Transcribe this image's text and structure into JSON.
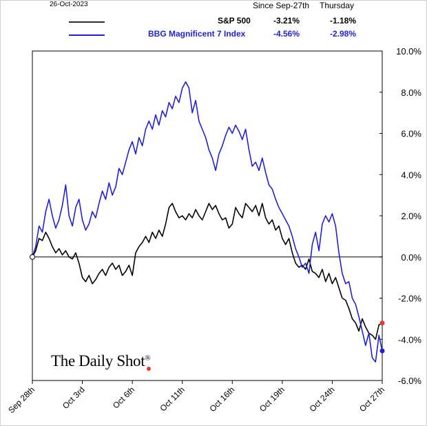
{
  "header": {
    "date": "26-Oct-2023",
    "col1": "Since Sep-27th",
    "col2": "Thursday"
  },
  "legend": [
    {
      "name": "S&P 500",
      "since": "-3.21%",
      "day": "-1.18%"
    },
    {
      "name": "BBG Magnificent 7 Index",
      "since": "-4.56%",
      "day": "-2.98%"
    }
  ],
  "brand": {
    "text": "The Daily Shot",
    "mark": "®"
  },
  "chart_data": {
    "type": "line",
    "title": "",
    "xlabel": "",
    "ylabel": "",
    "ylim": [
      -6,
      10
    ],
    "yticks": [
      -6,
      -4,
      -2,
      0,
      2,
      4,
      6,
      8,
      10
    ],
    "ytick_labels": [
      "-6.0%",
      "-4.0%",
      "-2.0%",
      "0.0%",
      "2.0%",
      "4.0%",
      "6.0%",
      "8.0%",
      "10.0%"
    ],
    "xlim": [
      0,
      21
    ],
    "xticks": [
      0,
      3,
      6,
      9,
      12,
      15,
      18,
      21
    ],
    "xtick_labels": [
      "Sep 28th",
      "Oct 3rd",
      "Oct 6th",
      "Oct 11th",
      "Oct 16th",
      "Oct 19th",
      "Oct 24th",
      "Oct 27th"
    ],
    "colors": {
      "sp500": "#000000",
      "mag7": "#1f1fd6",
      "sp500_end": "#e53935",
      "mag7_end": "#1f1fd6"
    },
    "series": [
      {
        "name": "S&P 500",
        "color": "#000000",
        "points": [
          [
            0,
            0
          ],
          [
            0.2,
            0.3
          ],
          [
            0.4,
            0.9
          ],
          [
            0.6,
            0.8
          ],
          [
            0.8,
            1.2
          ],
          [
            1.0,
            0.9
          ],
          [
            1.2,
            0.5
          ],
          [
            1.4,
            0.2
          ],
          [
            1.6,
            0.4
          ],
          [
            1.8,
            0.1
          ],
          [
            2.0,
            0.3
          ],
          [
            2.2,
            0.0
          ],
          [
            2.4,
            -0.1
          ],
          [
            2.6,
            0.2
          ],
          [
            2.8,
            -0.3
          ],
          [
            3.0,
            -1.0
          ],
          [
            3.2,
            -1.2
          ],
          [
            3.4,
            -0.9
          ],
          [
            3.6,
            -1.3
          ],
          [
            3.8,
            -1.1
          ],
          [
            4.0,
            -0.8
          ],
          [
            4.2,
            -0.6
          ],
          [
            4.4,
            -0.9
          ],
          [
            4.6,
            -0.5
          ],
          [
            4.8,
            -0.3
          ],
          [
            5.0,
            -0.6
          ],
          [
            5.2,
            -0.4
          ],
          [
            5.4,
            -0.9
          ],
          [
            5.6,
            -0.7
          ],
          [
            5.8,
            -0.4
          ],
          [
            6.0,
            -0.9
          ],
          [
            6.2,
            0.2
          ],
          [
            6.4,
            0.5
          ],
          [
            6.6,
            0.7
          ],
          [
            6.8,
            1.0
          ],
          [
            7.0,
            0.7
          ],
          [
            7.2,
            1.2
          ],
          [
            7.4,
            0.9
          ],
          [
            7.6,
            1.3
          ],
          [
            7.8,
            1.0
          ],
          [
            8.0,
            1.6
          ],
          [
            8.2,
            2.4
          ],
          [
            8.4,
            2.6
          ],
          [
            8.6,
            2.2
          ],
          [
            8.8,
            1.9
          ],
          [
            9.0,
            2.0
          ],
          [
            9.2,
            1.8
          ],
          [
            9.4,
            2.1
          ],
          [
            9.6,
            1.9
          ],
          [
            9.8,
            2.3
          ],
          [
            10.0,
            2.0
          ],
          [
            10.2,
            1.8
          ],
          [
            10.4,
            2.2
          ],
          [
            10.6,
            2.6
          ],
          [
            10.8,
            2.3
          ],
          [
            11.0,
            2.5
          ],
          [
            11.2,
            2.1
          ],
          [
            11.4,
            1.8
          ],
          [
            11.6,
            1.9
          ],
          [
            11.8,
            1.4
          ],
          [
            12.0,
            1.6
          ],
          [
            12.2,
            2.4
          ],
          [
            12.4,
            2.1
          ],
          [
            12.6,
            1.9
          ],
          [
            12.8,
            2.6
          ],
          [
            13.0,
            2.4
          ],
          [
            13.2,
            2.2
          ],
          [
            13.4,
            2.5
          ],
          [
            13.6,
            2.0
          ],
          [
            13.8,
            2.6
          ],
          [
            14.0,
            1.9
          ],
          [
            14.2,
            1.6
          ],
          [
            14.4,
            1.8
          ],
          [
            14.6,
            1.3
          ],
          [
            14.8,
            1.5
          ],
          [
            15.0,
            0.9
          ],
          [
            15.2,
            0.6
          ],
          [
            15.4,
            0.9
          ],
          [
            15.6,
            0.2
          ],
          [
            15.8,
            -0.3
          ],
          [
            16.0,
            -0.5
          ],
          [
            16.2,
            -0.4
          ],
          [
            16.4,
            -0.6
          ],
          [
            16.6,
            -0.1
          ],
          [
            16.8,
            -0.7
          ],
          [
            17.0,
            -0.8
          ],
          [
            17.2,
            -1.0
          ],
          [
            17.4,
            -0.6
          ],
          [
            17.6,
            -1.2
          ],
          [
            17.8,
            -0.8
          ],
          [
            18.0,
            -1.3
          ],
          [
            18.2,
            -1.0
          ],
          [
            18.4,
            -1.5
          ],
          [
            18.6,
            -2.0
          ],
          [
            18.8,
            -2.1
          ],
          [
            19.0,
            -2.5
          ],
          [
            19.2,
            -3.0
          ],
          [
            19.4,
            -3.2
          ],
          [
            19.6,
            -3.6
          ],
          [
            19.8,
            -3.0
          ],
          [
            20.0,
            -3.4
          ],
          [
            20.2,
            -3.7
          ],
          [
            20.4,
            -3.8
          ],
          [
            20.6,
            -4.0
          ],
          [
            20.8,
            -3.3
          ],
          [
            21.0,
            -3.21
          ]
        ]
      },
      {
        "name": "BBG Magnificent 7 Index",
        "color": "#1f1fd6",
        "points": [
          [
            0,
            0
          ],
          [
            0.2,
            0.5
          ],
          [
            0.4,
            1.5
          ],
          [
            0.6,
            1.2
          ],
          [
            0.8,
            2.2
          ],
          [
            1.0,
            2.8
          ],
          [
            1.2,
            2.0
          ],
          [
            1.4,
            1.4
          ],
          [
            1.6,
            1.8
          ],
          [
            1.8,
            2.5
          ],
          [
            2.0,
            3.5
          ],
          [
            2.2,
            2.0
          ],
          [
            2.4,
            1.5
          ],
          [
            2.6,
            2.4
          ],
          [
            2.8,
            2.8
          ],
          [
            3.0,
            1.8
          ],
          [
            3.2,
            1.3
          ],
          [
            3.4,
            1.6
          ],
          [
            3.6,
            2.2
          ],
          [
            3.8,
            1.9
          ],
          [
            4.0,
            2.6
          ],
          [
            4.2,
            3.2
          ],
          [
            4.4,
            2.8
          ],
          [
            4.6,
            3.6
          ],
          [
            4.8,
            3.0
          ],
          [
            5.0,
            3.4
          ],
          [
            5.2,
            4.3
          ],
          [
            5.4,
            4.0
          ],
          [
            5.6,
            4.6
          ],
          [
            5.8,
            5.2
          ],
          [
            6.0,
            5.6
          ],
          [
            6.2,
            5.0
          ],
          [
            6.4,
            5.8
          ],
          [
            6.6,
            5.4
          ],
          [
            6.8,
            6.2
          ],
          [
            7.0,
            6.6
          ],
          [
            7.2,
            6.2
          ],
          [
            7.4,
            6.9
          ],
          [
            7.6,
            6.4
          ],
          [
            7.8,
            7.1
          ],
          [
            8.0,
            6.8
          ],
          [
            8.2,
            7.5
          ],
          [
            8.4,
            7.2
          ],
          [
            8.6,
            7.8
          ],
          [
            8.8,
            7.5
          ],
          [
            9.0,
            8.2
          ],
          [
            9.2,
            8.5
          ],
          [
            9.4,
            8.2
          ],
          [
            9.6,
            7.0
          ],
          [
            9.8,
            7.6
          ],
          [
            10.0,
            6.6
          ],
          [
            10.2,
            6.2
          ],
          [
            10.4,
            5.8
          ],
          [
            10.6,
            5.2
          ],
          [
            10.8,
            4.8
          ],
          [
            11.0,
            4.2
          ],
          [
            11.2,
            5.0
          ],
          [
            11.4,
            5.4
          ],
          [
            11.6,
            5.9
          ],
          [
            11.8,
            6.3
          ],
          [
            12.0,
            6.0
          ],
          [
            12.2,
            6.4
          ],
          [
            12.4,
            6.1
          ],
          [
            12.6,
            5.7
          ],
          [
            12.8,
            6.2
          ],
          [
            13.0,
            5.2
          ],
          [
            13.2,
            4.4
          ],
          [
            13.4,
            4.6
          ],
          [
            13.6,
            4.2
          ],
          [
            13.8,
            4.8
          ],
          [
            14.0,
            4.1
          ],
          [
            14.2,
            3.5
          ],
          [
            14.4,
            3.3
          ],
          [
            14.6,
            2.8
          ],
          [
            14.8,
            2.4
          ],
          [
            15.0,
            2.1
          ],
          [
            15.2,
            1.8
          ],
          [
            15.4,
            1.5
          ],
          [
            15.6,
            1.0
          ],
          [
            15.8,
            0.4
          ],
          [
            16.0,
            0.0
          ],
          [
            16.2,
            -0.5
          ],
          [
            16.4,
            -0.3
          ],
          [
            16.6,
            -0.8
          ],
          [
            16.8,
            0.6
          ],
          [
            17.0,
            1.2
          ],
          [
            17.2,
            0.3
          ],
          [
            17.4,
            1.6
          ],
          [
            17.6,
            2.0
          ],
          [
            17.8,
            1.7
          ],
          [
            18.0,
            2.1
          ],
          [
            18.2,
            1.5
          ],
          [
            18.4,
            0.2
          ],
          [
            18.6,
            -0.8
          ],
          [
            18.8,
            -1.3
          ],
          [
            19.0,
            -1.2
          ],
          [
            19.2,
            -2.0
          ],
          [
            19.4,
            -2.3
          ],
          [
            19.6,
            -2.9
          ],
          [
            19.8,
            -3.6
          ],
          [
            20.0,
            -4.3
          ],
          [
            20.2,
            -3.7
          ],
          [
            20.4,
            -4.9
          ],
          [
            20.6,
            -5.1
          ],
          [
            20.8,
            -3.8
          ],
          [
            21.0,
            -4.56
          ]
        ]
      }
    ]
  }
}
